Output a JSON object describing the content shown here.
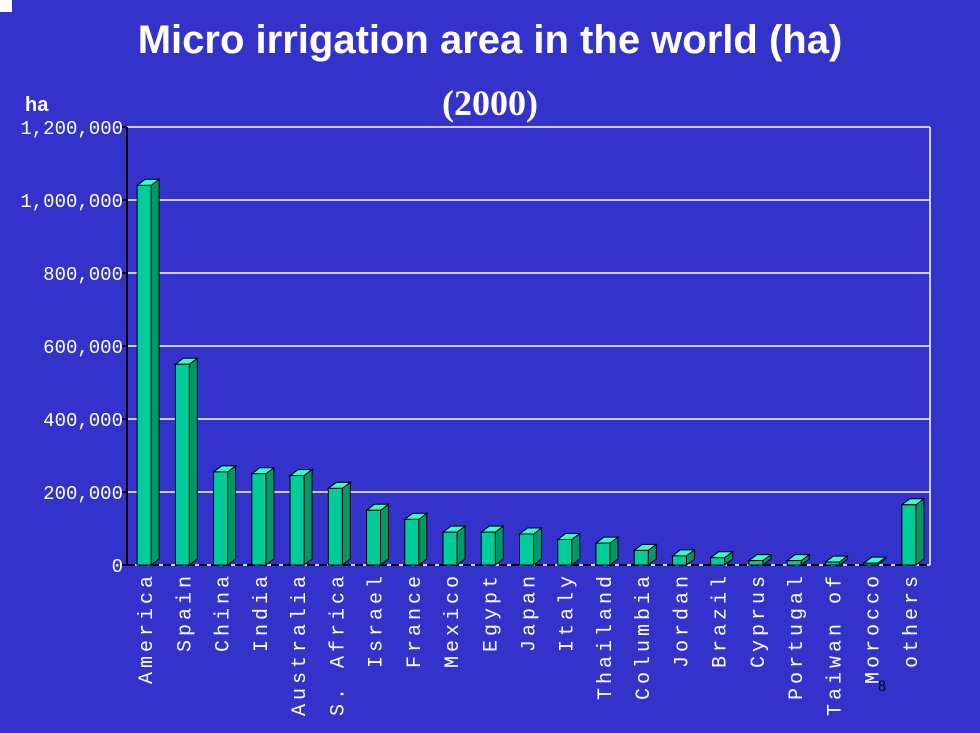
{
  "slide": {
    "title": "Micro irrigation area in the world  (ha)",
    "subtitle": "(2000)",
    "page_number": "8"
  },
  "colors": {
    "background": "#3333cc",
    "bar_front": "#00cc99",
    "bar_side": "#009966",
    "bar_top": "#33ffcc",
    "grid": "#ffffff",
    "text": "#ffffff"
  },
  "chart_data": {
    "type": "bar",
    "ylabel": "ha",
    "ylim": [
      0,
      1200000
    ],
    "yticks": [
      0,
      200000,
      400000,
      600000,
      800000,
      1000000,
      1200000
    ],
    "ytick_labels": [
      "0",
      "200,000",
      "400,000",
      "600,000",
      "800,000",
      "1,000,000",
      "1,200,000"
    ],
    "grid": true,
    "categories": [
      "America",
      "Spain",
      "China",
      "India",
      "Australia",
      "S. Africa",
      "Israel",
      "France",
      "Mexico",
      "Egypt",
      "Japan",
      "Italy",
      "Thailand",
      "Columbia",
      "Jordan",
      "Brazil",
      "Cyprus",
      "Portugal",
      "Taiwan of",
      "Morocco",
      "others"
    ],
    "values": [
      1040000,
      550000,
      255000,
      250000,
      245000,
      210000,
      150000,
      125000,
      90000,
      90000,
      85000,
      70000,
      60000,
      40000,
      25000,
      20000,
      12000,
      12000,
      8000,
      5000,
      165000
    ]
  }
}
